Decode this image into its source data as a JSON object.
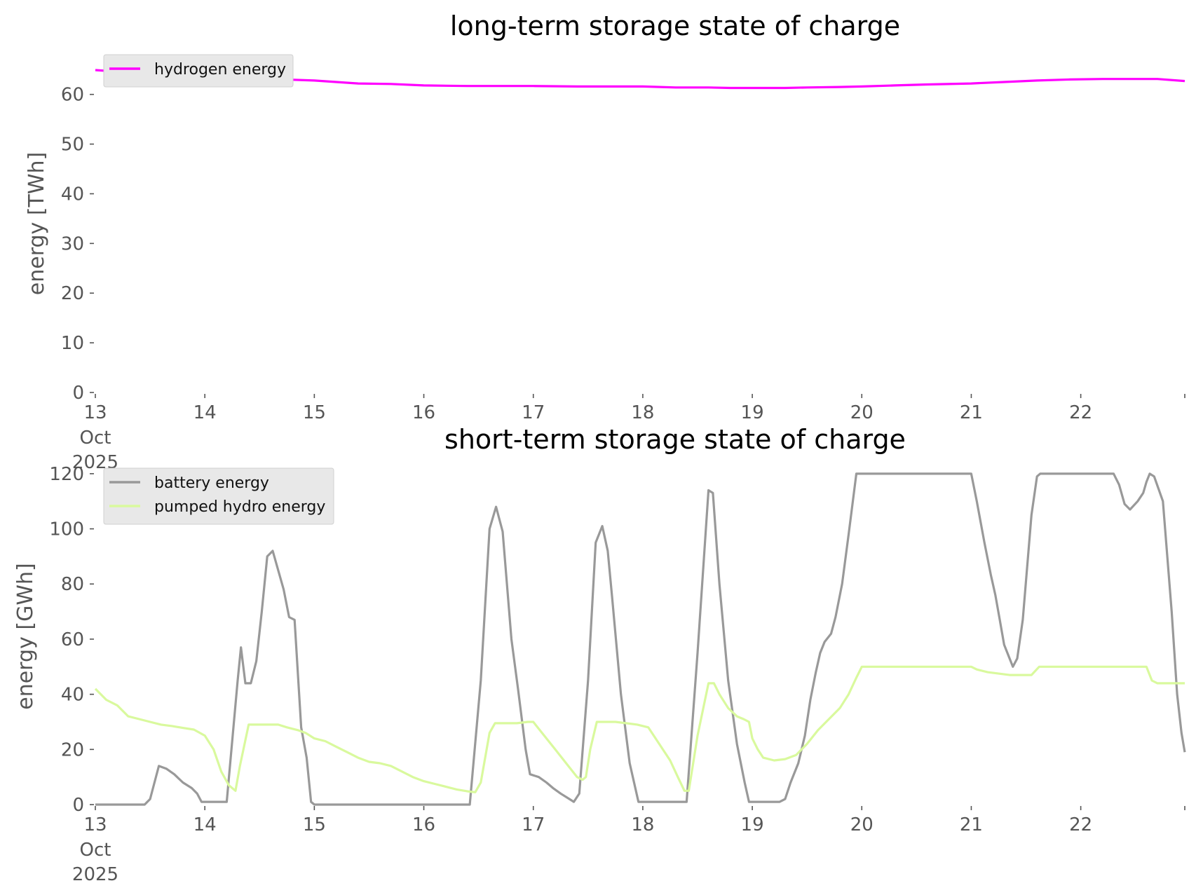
{
  "chart_data": [
    {
      "type": "line",
      "title": "long-term storage state of charge",
      "ylabel": "energy [TWh]",
      "ylim": [
        0,
        68
      ],
      "yticks": [
        "0",
        "10",
        "20",
        "30",
        "40",
        "50",
        "60"
      ],
      "xlim": [
        13.0,
        22.95
      ],
      "xticks": [
        {
          "label": "13",
          "sub": [
            "Oct",
            "2025"
          ]
        },
        {
          "label": "14"
        },
        {
          "label": "15"
        },
        {
          "label": "16"
        },
        {
          "label": "17"
        },
        {
          "label": "18"
        },
        {
          "label": "19"
        },
        {
          "label": "20"
        },
        {
          "label": "21"
        },
        {
          "label": "22"
        }
      ],
      "grid": false,
      "legend": "top-left",
      "series": [
        {
          "name": "hydrogen energy",
          "color": "#ff00ff",
          "x": [
            13.0,
            13.2,
            13.5,
            13.8,
            14.0,
            14.3,
            14.6,
            15.0,
            15.2,
            15.4,
            15.7,
            16.0,
            16.4,
            16.8,
            17.0,
            17.4,
            18.0,
            18.3,
            18.6,
            18.8,
            19.0,
            19.3,
            19.5,
            19.8,
            20.0,
            20.3,
            20.6,
            21.0,
            21.3,
            21.6,
            21.9,
            22.2,
            22.5,
            22.7,
            22.95
          ],
          "y": [
            64.9,
            64.6,
            64.0,
            63.7,
            63.5,
            63.3,
            63.1,
            62.8,
            62.5,
            62.2,
            62.1,
            61.8,
            61.7,
            61.7,
            61.7,
            61.6,
            61.6,
            61.4,
            61.4,
            61.3,
            61.3,
            61.3,
            61.4,
            61.5,
            61.6,
            61.8,
            62.0,
            62.2,
            62.5,
            62.8,
            63.0,
            63.1,
            63.1,
            63.1,
            62.7
          ]
        }
      ]
    },
    {
      "type": "line",
      "title": "short-term storage state of charge",
      "ylabel": "energy [GWh]",
      "ylim": [
        0,
        122
      ],
      "yticks": [
        "0",
        "20",
        "40",
        "60",
        "80",
        "100",
        "120"
      ],
      "xlim": [
        13.0,
        22.95
      ],
      "xticks": [
        {
          "label": "13",
          "sub": [
            "Oct",
            "2025"
          ]
        },
        {
          "label": "14"
        },
        {
          "label": "15"
        },
        {
          "label": "16"
        },
        {
          "label": "17"
        },
        {
          "label": "18"
        },
        {
          "label": "19"
        },
        {
          "label": "20"
        },
        {
          "label": "21"
        },
        {
          "label": "22"
        }
      ],
      "grid": false,
      "legend": "top-left",
      "series": [
        {
          "name": "battery energy",
          "color": "#999999",
          "x": [
            13.0,
            13.45,
            13.5,
            13.58,
            13.65,
            13.72,
            13.8,
            13.88,
            13.93,
            13.97,
            14.2,
            14.3,
            14.33,
            14.37,
            14.42,
            14.47,
            14.52,
            14.57,
            14.62,
            14.67,
            14.72,
            14.77,
            14.82,
            14.88,
            14.93,
            14.97,
            15.0,
            16.42,
            16.52,
            16.6,
            16.66,
            16.72,
            16.8,
            16.86,
            16.93,
            16.97,
            17.05,
            17.12,
            17.18,
            17.25,
            17.33,
            17.37,
            17.42,
            17.5,
            17.57,
            17.63,
            17.68,
            17.72,
            17.8,
            17.88,
            17.96,
            18.4,
            18.5,
            18.6,
            18.64,
            18.7,
            18.78,
            18.86,
            18.93,
            18.97,
            19.0,
            19.25,
            19.3,
            19.35,
            19.42,
            19.48,
            19.53,
            19.58,
            19.62,
            19.66,
            19.72,
            19.76,
            19.82,
            19.88,
            19.95,
            21.0,
            21.05,
            21.12,
            21.18,
            21.22,
            21.26,
            21.3,
            21.35,
            21.38,
            21.42,
            21.47,
            21.55,
            21.6,
            21.63,
            21.7,
            22.25,
            22.3,
            22.35,
            22.4,
            22.45,
            22.52,
            22.57,
            22.6,
            22.63,
            22.67,
            22.75,
            22.83,
            22.88,
            22.92,
            22.95
          ],
          "y": [
            0,
            0,
            2,
            14,
            13,
            11,
            8,
            6,
            4,
            1,
            1,
            45,
            57,
            44,
            44,
            52,
            70,
            90,
            92,
            85,
            78,
            68,
            67,
            28,
            17,
            1,
            0,
            0,
            45,
            100,
            108,
            99,
            60,
            42,
            20,
            11,
            10,
            8,
            6,
            4,
            2,
            1,
            4,
            45,
            95,
            101,
            92,
            75,
            40,
            15,
            1,
            1,
            55,
            114,
            113,
            80,
            45,
            22,
            8,
            1,
            1,
            1,
            2,
            8,
            15,
            25,
            38,
            48,
            55,
            59,
            62,
            68,
            80,
            98,
            120,
            120,
            110,
            95,
            83,
            76,
            67,
            58,
            53,
            50,
            53,
            67,
            105,
            119,
            120,
            120,
            120,
            120,
            116,
            109,
            107,
            110,
            113,
            117,
            120,
            119,
            110,
            70,
            40,
            26,
            19
          ]
        },
        {
          "name": "pumped hydro energy",
          "color": "#d9f99d",
          "x": [
            13.0,
            13.05,
            13.1,
            13.2,
            13.3,
            13.4,
            13.5,
            13.6,
            13.7,
            13.8,
            13.9,
            14.0,
            14.08,
            14.15,
            14.22,
            14.28,
            14.32,
            14.4,
            14.5,
            14.6,
            14.67,
            14.75,
            14.85,
            14.92,
            15.0,
            15.1,
            15.2,
            15.3,
            15.4,
            15.5,
            15.6,
            15.7,
            15.8,
            15.9,
            16.0,
            16.1,
            16.2,
            16.3,
            16.4,
            16.47,
            16.52,
            16.6,
            16.65,
            16.75,
            16.85,
            16.95,
            17.0,
            17.1,
            17.2,
            17.3,
            17.4,
            17.45,
            17.48,
            17.52,
            17.58,
            17.65,
            17.75,
            17.85,
            17.95,
            18.05,
            18.15,
            18.25,
            18.32,
            18.38,
            18.42,
            18.5,
            18.6,
            18.65,
            18.7,
            18.78,
            18.86,
            18.92,
            18.97,
            19.0,
            19.05,
            19.1,
            19.2,
            19.3,
            19.4,
            19.5,
            19.6,
            19.7,
            19.8,
            19.88,
            19.95,
            20.0,
            20.3,
            20.6,
            20.9,
            21.0,
            21.05,
            21.15,
            21.25,
            21.35,
            21.45,
            21.55,
            21.62,
            21.8,
            22.0,
            22.3,
            22.6,
            22.65,
            22.7,
            22.8,
            22.95
          ],
          "y": [
            42,
            40,
            38,
            36,
            32,
            31,
            30,
            29,
            28.5,
            27.8,
            27.2,
            25,
            20,
            12,
            7,
            5,
            14,
            29,
            29,
            29,
            29,
            28,
            27,
            26,
            24,
            23,
            21,
            19,
            17,
            15.5,
            15,
            14,
            12,
            10,
            8.5,
            7.5,
            6.5,
            5.5,
            4.8,
            4.5,
            8,
            26,
            29.5,
            29.5,
            29.5,
            30,
            30,
            25,
            20,
            15,
            10,
            9,
            10,
            20,
            30,
            30,
            30,
            29.5,
            29,
            28,
            22,
            16,
            10,
            5,
            5,
            25,
            44,
            44,
            40,
            35,
            32,
            31,
            30,
            24,
            20,
            17,
            16,
            16.5,
            18,
            22,
            27,
            31,
            35,
            40,
            46,
            50,
            50,
            50,
            50,
            50,
            49,
            48,
            47.5,
            47,
            47,
            47,
            50,
            50,
            50,
            50,
            50,
            45,
            44,
            44,
            44
          ]
        }
      ]
    }
  ]
}
